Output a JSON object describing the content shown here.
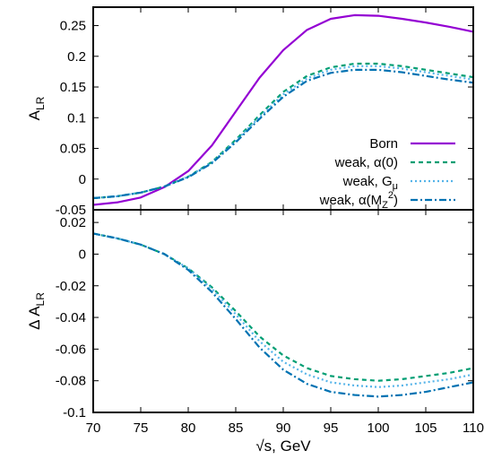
{
  "chart_data": [
    {
      "type": "line",
      "panel": "top",
      "ylabel_main": "A",
      "ylabel_sub": "LR",
      "xlim": [
        70,
        110
      ],
      "ylim": [
        -0.05,
        0.28
      ],
      "xticks": [
        "70",
        "75",
        "80",
        "85",
        "90",
        "95",
        "100",
        "105",
        "110"
      ],
      "yticks": [
        {
          "v": 0.25,
          "label": "0.25"
        },
        {
          "v": 0.2,
          "label": "0.2"
        },
        {
          "v": 0.15,
          "label": "0.15"
        },
        {
          "v": 0.1,
          "label": "0.1"
        },
        {
          "v": 0.05,
          "label": "0.05"
        },
        {
          "v": 0,
          "label": "0"
        },
        {
          "v": -0.05,
          "label": "-0.05"
        }
      ],
      "x": [
        70,
        72.5,
        75,
        77.5,
        80,
        82.5,
        85,
        87.5,
        90,
        92.5,
        95,
        97.5,
        100,
        102.5,
        105,
        107.5,
        110
      ],
      "series": [
        {
          "key": "born",
          "name": "Born",
          "color": "#9400d3",
          "dash": "",
          "values": [
            -0.042,
            -0.038,
            -0.03,
            -0.013,
            0.013,
            0.055,
            0.11,
            0.165,
            0.21,
            0.243,
            0.261,
            0.267,
            0.266,
            0.261,
            0.255,
            0.248,
            0.24
          ]
        },
        {
          "key": "a0",
          "name": "weak, α(0)",
          "color": "#009e73",
          "dash": "5,4",
          "values": [
            -0.031,
            -0.028,
            -0.022,
            -0.012,
            0.004,
            0.028,
            0.064,
            0.104,
            0.142,
            0.168,
            0.182,
            0.188,
            0.188,
            0.184,
            0.178,
            0.172,
            0.166
          ]
        },
        {
          "key": "gmu",
          "name": "weak, G",
          "name_sub": "μ",
          "color": "#56b4e9",
          "dash": "2,3",
          "values": [
            -0.031,
            -0.028,
            -0.022,
            -0.012,
            0.004,
            0.027,
            0.062,
            0.101,
            0.138,
            0.164,
            0.178,
            0.184,
            0.184,
            0.18,
            0.174,
            0.168,
            0.162
          ]
        },
        {
          "key": "amz",
          "name": "weak, α(M",
          "name_sub": "Z",
          "name_sup": "2",
          "name_end": ")",
          "color": "#0072b2",
          "dash": "8,3,2,3",
          "values": [
            -0.031,
            -0.028,
            -0.022,
            -0.012,
            0.003,
            0.026,
            0.06,
            0.098,
            0.134,
            0.16,
            0.173,
            0.178,
            0.178,
            0.174,
            0.168,
            0.162,
            0.157
          ]
        }
      ]
    },
    {
      "type": "line",
      "panel": "bottom",
      "ylabel_main": "Δ A",
      "ylabel_sub": "LR",
      "xlabel": "√s, GeV",
      "xlim": [
        70,
        110
      ],
      "ylim": [
        -0.1,
        0.028
      ],
      "xticks": [
        "70",
        "75",
        "80",
        "85",
        "90",
        "95",
        "100",
        "105",
        "110"
      ],
      "yticks": [
        {
          "v": 0.02,
          "label": "0.02"
        },
        {
          "v": 0,
          "label": "0"
        },
        {
          "v": -0.02,
          "label": "-0.02"
        },
        {
          "v": -0.04,
          "label": "-0.04"
        },
        {
          "v": -0.06,
          "label": "-0.06"
        },
        {
          "v": -0.08,
          "label": "-0.08"
        },
        {
          "v": -0.1,
          "label": "-0.1"
        }
      ],
      "x": [
        70,
        72.5,
        75,
        77.5,
        80,
        82.5,
        85,
        87.5,
        90,
        92.5,
        95,
        97.5,
        100,
        102.5,
        105,
        107.5,
        110
      ],
      "series": [
        {
          "key": "a0",
          "color": "#009e73",
          "dash": "5,4",
          "values": [
            0.013,
            0.01,
            0.006,
            0.0,
            -0.009,
            -0.021,
            -0.036,
            -0.052,
            -0.064,
            -0.072,
            -0.077,
            -0.079,
            -0.08,
            -0.079,
            -0.077,
            -0.075,
            -0.072
          ]
        },
        {
          "key": "gmu",
          "color": "#56b4e9",
          "dash": "2,3",
          "values": [
            0.013,
            0.01,
            0.006,
            0.0,
            -0.009,
            -0.022,
            -0.038,
            -0.055,
            -0.068,
            -0.076,
            -0.081,
            -0.083,
            -0.084,
            -0.083,
            -0.081,
            -0.079,
            -0.076
          ]
        },
        {
          "key": "amz",
          "color": "#0072b2",
          "dash": "8,3,2,3",
          "values": [
            0.013,
            0.01,
            0.006,
            0.0,
            -0.01,
            -0.024,
            -0.041,
            -0.059,
            -0.073,
            -0.082,
            -0.087,
            -0.089,
            -0.09,
            -0.089,
            -0.087,
            -0.084,
            -0.081
          ]
        }
      ]
    }
  ]
}
